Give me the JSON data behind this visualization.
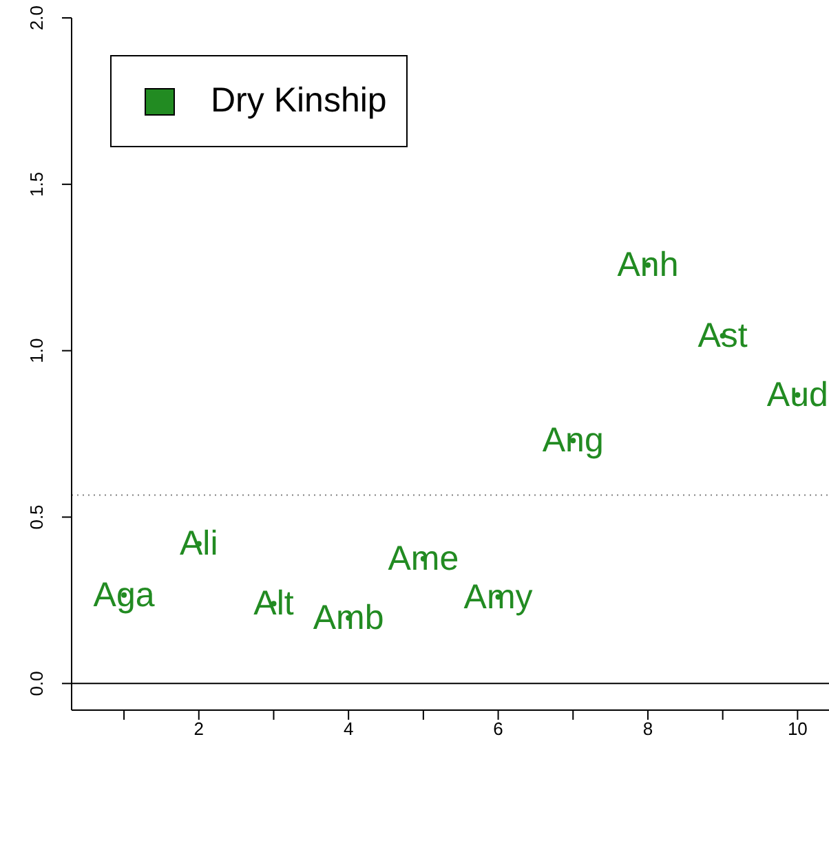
{
  "chart_data": {
    "type": "scatter",
    "marker": "circle",
    "legend": "top left",
    "grid": false,
    "x": [
      1,
      2,
      3,
      4,
      5,
      6,
      7,
      8,
      9,
      10
    ],
    "series": [
      {
        "name": "Dry Kinship",
        "color": "#228b22",
        "values": [
          0.266,
          0.42,
          0.24,
          0.197,
          0.375,
          0.26,
          0.73,
          1.257,
          1.045,
          0.867
        ],
        "value_labels": [
          "Aga",
          "Ali",
          "Alt",
          "Amb",
          "Ame",
          "Amy",
          "Ang",
          "Anh",
          "Ast",
          "Aud"
        ]
      }
    ],
    "xlim": [
      0.3,
      10.42
    ],
    "xticks": [
      {
        "value": 1,
        "label": null
      },
      2,
      {
        "value": 3,
        "label": null
      },
      4,
      {
        "value": 5,
        "label": null
      },
      6,
      {
        "value": 7,
        "label": null
      },
      8,
      {
        "value": 9,
        "label": null
      },
      10
    ],
    "ylim": [
      -0.08,
      2.0
    ],
    "yticks": [
      {
        "value": 0,
        "label": "0.0"
      },
      {
        "value": 0.5,
        "label": "0.5"
      },
      {
        "value": 1,
        "label": "1.0"
      },
      {
        "value": 1.5,
        "label": "1.5"
      },
      {
        "value": 2,
        "label": "2.0"
      }
    ],
    "ref_lines": [
      {
        "axis": "y",
        "value": 0,
        "color": "#000000",
        "line_style": "solid"
      },
      {
        "axis": "y",
        "value": 0.566,
        "color": "#808080",
        "line_style": "dotted"
      }
    ]
  }
}
